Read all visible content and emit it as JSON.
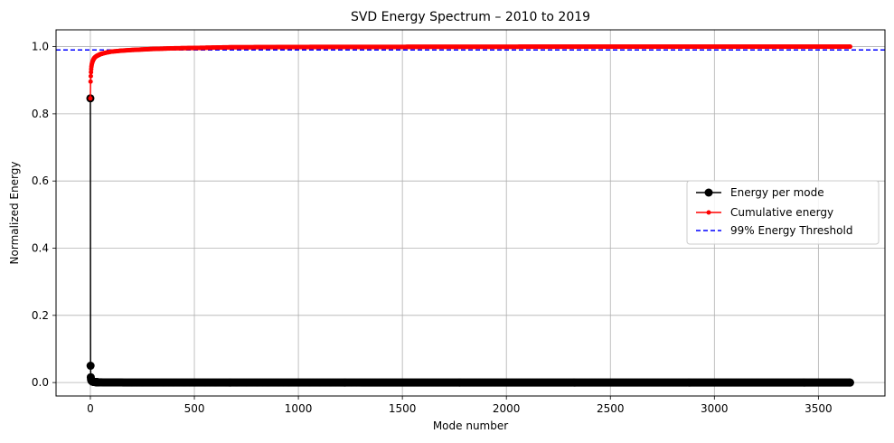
{
  "chart_data": {
    "type": "line",
    "title": "SVD Energy Spectrum – 2010 to 2019",
    "xlabel": "Mode number",
    "ylabel": "Normalized Energy",
    "xlim": [
      -165,
      3820
    ],
    "ylim": [
      -0.04,
      1.05
    ],
    "xticks": [
      0,
      500,
      1000,
      1500,
      2000,
      2500,
      3000,
      3500
    ],
    "yticks": [
      0.0,
      0.2,
      0.4,
      0.6,
      0.8,
      1.0
    ],
    "xtick_labels": [
      "0",
      "500",
      "1000",
      "1500",
      "2000",
      "2500",
      "3000",
      "3500"
    ],
    "ytick_labels": [
      "0.0",
      "0.2",
      "0.4",
      "0.6",
      "0.8",
      "1.0"
    ],
    "grid": true,
    "legend_position": "center-right",
    "n_modes": 3653,
    "series": [
      {
        "name": "Energy per mode",
        "color": "#000000",
        "marker": "circle",
        "x": [
          0,
          1,
          2,
          3,
          4,
          6,
          8,
          10,
          15,
          20,
          30,
          50,
          100,
          200,
          500,
          1000,
          2000,
          3000,
          3652
        ],
        "y": [
          0.846,
          0.05,
          0.016,
          0.01,
          0.007,
          0.005,
          0.004,
          0.003,
          0.002,
          0.0015,
          0.001,
          0.0006,
          0.0003,
          0.0001,
          3e-05,
          1e-05,
          0.0,
          0.0,
          0.0
        ]
      },
      {
        "name": "Cumulative energy",
        "color": "#ff0000",
        "marker": "dot",
        "x": [
          0,
          1,
          2,
          3,
          4,
          5,
          7,
          10,
          15,
          20,
          30,
          50,
          75,
          100,
          150,
          200,
          300,
          400,
          500,
          660,
          1000,
          2000,
          3000,
          3652
        ],
        "y": [
          0.846,
          0.896,
          0.912,
          0.924,
          0.933,
          0.94,
          0.948,
          0.955,
          0.962,
          0.967,
          0.972,
          0.978,
          0.982,
          0.985,
          0.988,
          0.99,
          0.993,
          0.995,
          0.996,
          0.998,
          0.999,
          0.9997,
          0.9999,
          1.0
        ]
      }
    ],
    "threshold": {
      "name": "99% Energy Threshold",
      "value": 0.99,
      "color": "#0000ff",
      "style": "dashed"
    }
  }
}
